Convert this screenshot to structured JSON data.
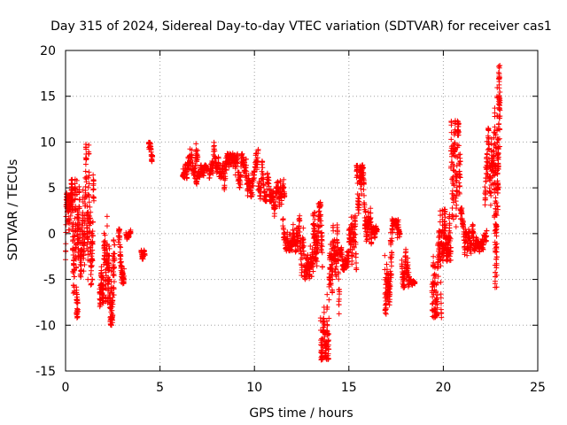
{
  "chart_data": {
    "type": "scatter",
    "title": "Day 315 of 2024, Sidereal Day-to-day VTEC variation (SDTVAR) for receiver cas1",
    "xlabel": "GPS time / hours",
    "ylabel": "SDTVAR / TECUs",
    "xlim": [
      0,
      25
    ],
    "ylim": [
      -15,
      20
    ],
    "xticks": [
      0,
      5,
      10,
      15,
      20,
      25
    ],
    "yticks": [
      -15,
      -10,
      -5,
      0,
      5,
      10,
      15,
      20
    ],
    "grid": true,
    "marker": "+",
    "color": "#ff0000",
    "series": [
      {
        "name": "SDTVAR",
        "clusters": [
          {
            "x": [
              0.0,
              0.35
            ],
            "y": [
              -3.0,
              4.5
            ]
          },
          {
            "x": [
              0.3,
              0.65
            ],
            "y": [
              -9.2,
              6.0
            ]
          },
          {
            "x": [
              0.6,
              1.0
            ],
            "y": [
              -6.5,
              5.8
            ]
          },
          {
            "x": [
              1.0,
              1.5
            ],
            "y": [
              -6.0,
              10.0
            ]
          },
          {
            "x": [
              1.8,
              2.2
            ],
            "y": [
              -8.0,
              3.5
            ]
          },
          {
            "x": [
              2.2,
              2.6
            ],
            "y": [
              -10.2,
              3.2
            ]
          },
          {
            "x": [
              2.8,
              3.1
            ],
            "y": [
              -5.5,
              0.5
            ]
          },
          {
            "x": [
              3.2,
              3.45
            ],
            "y": [
              -1.0,
              0.5
            ]
          },
          {
            "x": [
              4.0,
              4.2
            ],
            "y": [
              -3.5,
              -1.8
            ]
          },
          {
            "x": [
              4.4,
              4.6
            ],
            "y": [
              7.0,
              10.0
            ]
          },
          {
            "x": [
              6.2,
              7.0
            ],
            "y": [
              6.0,
              11.0
            ]
          },
          {
            "x": [
              6.9,
              7.5
            ],
            "y": [
              5.0,
              7.5
            ]
          },
          {
            "x": [
              7.6,
              8.4
            ],
            "y": [
              6.0,
              10.5
            ]
          },
          {
            "x": [
              8.4,
              9.2
            ],
            "y": [
              3.0,
              8.8
            ]
          },
          {
            "x": [
              9.2,
              10.2
            ],
            "y": [
              4.0,
              9.5
            ]
          },
          {
            "x": [
              10.2,
              11.0
            ],
            "y": [
              3.5,
              8.0
            ]
          },
          {
            "x": [
              11.0,
              11.6
            ],
            "y": [
              1.5,
              6.5
            ]
          },
          {
            "x": [
              11.5,
              12.4
            ],
            "y": [
              -2.0,
              4.0
            ]
          },
          {
            "x": [
              12.4,
              13.2
            ],
            "y": [
              -5.0,
              2.5
            ]
          },
          {
            "x": [
              13.1,
              13.6
            ],
            "y": [
              -6.5,
              3.5
            ]
          },
          {
            "x": [
              13.5,
              14.0
            ],
            "y": [
              -13.8,
              -2.0
            ]
          },
          {
            "x": [
              14.0,
              14.5
            ],
            "y": [
              -9.0,
              1.0
            ]
          },
          {
            "x": [
              14.5,
              15.0
            ],
            "y": [
              -4.0,
              0.0
            ]
          },
          {
            "x": [
              15.0,
              15.4
            ],
            "y": [
              -4.5,
              2.0
            ]
          },
          {
            "x": [
              15.4,
              15.8
            ],
            "y": [
              -1.0,
              7.5
            ]
          },
          {
            "x": [
              15.8,
              16.2
            ],
            "y": [
              -1.5,
              4.5
            ]
          },
          {
            "x": [
              16.2,
              16.5
            ],
            "y": [
              -0.5,
              2.0
            ]
          },
          {
            "x": [
              16.9,
              17.3
            ],
            "y": [
              -9.0,
              2.0
            ]
          },
          {
            "x": [
              17.3,
              17.7
            ],
            "y": [
              -2.0,
              1.5
            ]
          },
          {
            "x": [
              17.8,
              18.2
            ],
            "y": [
              -6.0,
              0.0
            ]
          },
          {
            "x": [
              18.2,
              18.5
            ],
            "y": [
              -6.0,
              -5.0
            ]
          },
          {
            "x": [
              19.4,
              19.9
            ],
            "y": [
              -9.2,
              2.5
            ]
          },
          {
            "x": [
              19.9,
              20.4
            ],
            "y": [
              -3.0,
              9.5
            ]
          },
          {
            "x": [
              20.4,
              20.9
            ],
            "y": [
              -1.0,
              12.5
            ]
          },
          {
            "x": [
              20.9,
              21.6
            ],
            "y": [
              -2.5,
              3.0
            ]
          },
          {
            "x": [
              21.6,
              22.3
            ],
            "y": [
              -2.0,
              1.5
            ]
          },
          {
            "x": [
              22.2,
              22.7
            ],
            "y": [
              3.0,
              12.5
            ]
          },
          {
            "x": [
              22.7,
              23.0
            ],
            "y": [
              -6.5,
              18.5
            ]
          }
        ]
      }
    ]
  }
}
